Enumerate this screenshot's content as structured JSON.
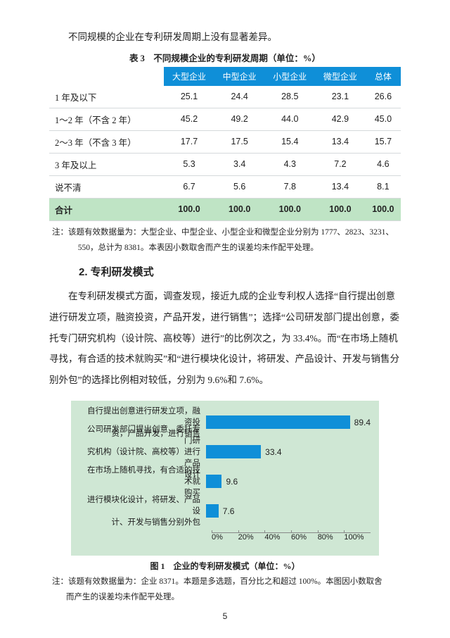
{
  "lead_text": "不同规模的企业在专利研发周期上没有显著差异。",
  "table3": {
    "caption": "表 3　不同规模企业的专利研发周期（单位：%）",
    "columns": [
      "",
      "大型企业",
      "中型企业",
      "小型企业",
      "微型企业",
      "总体"
    ],
    "rows": [
      [
        "1 年及以下",
        "25.1",
        "24.4",
        "28.5",
        "23.1",
        "26.6"
      ],
      [
        "1～2 年（不含 2 年）",
        "45.2",
        "49.2",
        "44.0",
        "42.9",
        "45.0"
      ],
      [
        "2～3 年（不含 3 年）",
        "17.7",
        "17.5",
        "15.4",
        "13.4",
        "15.7"
      ],
      [
        "3 年及以上",
        "5.3",
        "3.4",
        "4.3",
        "7.2",
        "4.6"
      ],
      [
        "说不清",
        "6.7",
        "5.6",
        "7.8",
        "13.4",
        "8.1"
      ]
    ],
    "total_row": [
      "合计",
      "100.0",
      "100.0",
      "100.0",
      "100.0",
      "100.0"
    ],
    "note_a": "注：该题有效数据量为：大型企业、中型企业、小型企业和微型企业分别为 1777、2823、3231、",
    "note_b": "550，总计为 8381。本表因小数取舍而产生的误差均未作配平处理。"
  },
  "sec2_title": "2. 专利研发模式",
  "p_lines": [
    "在专利研发模式方面，调查发现，接近九成的企业专利权人选择“自行提出",
    "创意进行研发立项，融资投资，产品开发，进行销售”；选择“公司研发部门提",
    "出创意，委托专门研究机构（设计院、高校等）进行”的比例次之，为 33.4%。",
    "而“在市场上随机寻找，有合适的技术就购买”和“进行模块化设计，将研发、",
    "产品设计、开发与销售分别外包”的选择比例相对较低，分别为 9.6%和 7.6%。"
  ],
  "chart": {
    "type": "bar",
    "bar_color": "#0f8fd8",
    "background_color": "#cfe7d4",
    "xlim": [
      0,
      100
    ],
    "xtick_step": 20,
    "ticks": [
      "0%",
      "20%",
      "40%",
      "60%",
      "80%",
      "100%"
    ],
    "items": [
      {
        "label": "自行提出创意进行研发立项，融资投\n资，产品开发，进行销售",
        "value": 89.4
      },
      {
        "label": "公司研发部门提出创意，委托专门研\n究机构（设计院、高校等）进行产品\n设计",
        "value": 33.4
      },
      {
        "label": "在市场上随机寻找，有合适的技术就\n购买",
        "value": 9.6
      },
      {
        "label": "进行模块化设计，将研发、产品设\n计、开发与销售分别外包",
        "value": 7.6
      }
    ],
    "caption": "图 1　企业的专利研发模式（单位：%）",
    "note_a": "注：该题有效数据量为：企业 8371。本题是多选题，百分比之和超过 100%。本图因小数取舍",
    "note_b": "而产生的误差均未作配平处理。"
  },
  "page_number": "5"
}
